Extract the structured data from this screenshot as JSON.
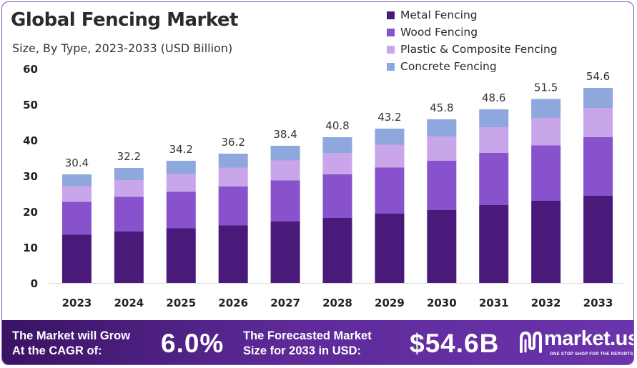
{
  "chart_data": {
    "type": "bar",
    "stacked": true,
    "title": "Global Fencing Market",
    "subtitle": "Size, By Type, 2023-2033 (USD Billion)",
    "categories": [
      "2023",
      "2024",
      "2025",
      "2026",
      "2027",
      "2028",
      "2029",
      "2030",
      "2031",
      "2032",
      "2033"
    ],
    "totals": [
      "30.4",
      "32.2",
      "34.2",
      "36.2",
      "38.4",
      "40.8",
      "43.2",
      "45.8",
      "48.6",
      "51.5",
      "54.6"
    ],
    "series": [
      {
        "name": "Metal Fencing",
        "color": "#4a1a7a",
        "values": [
          13.5,
          14.4,
          15.3,
          16.1,
          17.2,
          18.2,
          19.4,
          20.4,
          21.8,
          23.0,
          24.4
        ]
      },
      {
        "name": "Wood Fencing",
        "color": "#8752cc",
        "values": [
          9.2,
          9.7,
          10.2,
          10.9,
          11.5,
          12.2,
          12.9,
          13.8,
          14.6,
          15.5,
          16.4
        ]
      },
      {
        "name": "Plastic & Composite Fencing",
        "color": "#c9a6ea",
        "values": [
          4.4,
          4.7,
          5.0,
          5.3,
          5.6,
          6.0,
          6.4,
          6.8,
          7.2,
          7.7,
          8.2
        ]
      },
      {
        "name": "Concrete Fencing",
        "color": "#8ea7dd",
        "values": [
          3.3,
          3.4,
          3.7,
          3.9,
          4.1,
          4.4,
          4.5,
          4.8,
          5.0,
          5.3,
          5.6
        ]
      }
    ],
    "yticks": [
      "0",
      "10",
      "20",
      "30",
      "40",
      "50",
      "60"
    ],
    "ylim": [
      0,
      60
    ],
    "grid": false,
    "legend_position": "top-right"
  },
  "footer": {
    "cagr_label_line1": "The Market will Grow",
    "cagr_label_line2": "At the CAGR of:",
    "cagr_value": "6.0%",
    "forecast_label_line1": "The Forecasted Market",
    "forecast_label_line2": "Size for 2033 in USD:",
    "forecast_value": "$54.6B",
    "brand_name": "market.us",
    "brand_tagline": "ONE STOP SHOP FOR THE REPORTS"
  }
}
